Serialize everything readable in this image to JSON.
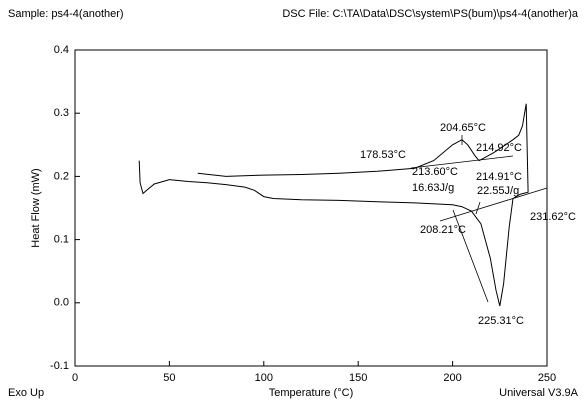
{
  "chart_data": {
    "type": "line",
    "sample": "Sample: ps4-4(another)",
    "file": "DSC File: C:\\TA\\Data\\DSC\\system\\PS(bum)\\ps4-4(another)a",
    "xlabel": "Temperature (°C)",
    "ylabel": "Heat Flow (mW)",
    "corner_left": "Exo Up",
    "corner_right": "Universal V3.9A",
    "xlim": [
      0,
      250
    ],
    "xticks": [
      0,
      50,
      100,
      150,
      200,
      250
    ],
    "ylim": [
      -0.1,
      0.4
    ],
    "yticks": [
      -0.1,
      {
        "value": 0,
        "label": "0.0"
      },
      0.1,
      0.2,
      0.3,
      0.4
    ],
    "series": [
      {
        "color": "#000000",
        "x": [
          34,
          34.5,
          36,
          38,
          42,
          50,
          60,
          70,
          80,
          90,
          95,
          100,
          105,
          120,
          140,
          160,
          180,
          200,
          205,
          210,
          215,
          220,
          223,
          225,
          227,
          230,
          232,
          236,
          240,
          239,
          237,
          235,
          232,
          228,
          222,
          216,
          214,
          212,
          208,
          205,
          200,
          190,
          180,
          160,
          140,
          120,
          100,
          80,
          65
        ],
        "values": [
          0.225,
          0.19,
          0.173,
          0.178,
          0.188,
          0.195,
          0.192,
          0.19,
          0.187,
          0.183,
          0.178,
          0.168,
          0.165,
          0.163,
          0.162,
          0.16,
          0.158,
          0.155,
          0.152,
          0.145,
          0.125,
          0.07,
          0.02,
          -0.005,
          0.03,
          0.12,
          0.165,
          0.172,
          0.175,
          0.315,
          0.28,
          0.265,
          0.258,
          0.25,
          0.238,
          0.228,
          0.225,
          0.232,
          0.25,
          0.258,
          0.25,
          0.225,
          0.213,
          0.208,
          0.205,
          0.203,
          0.202,
          0.2,
          0.205
        ]
      }
    ],
    "annotations": [
      "178.53°C",
      "204.65°C",
      "214.92°C",
      "213.60°C",
      "214.91°C",
      "16.63J/g",
      "22.55J/g",
      "208.21°C",
      "231.62°C",
      "225.31°C"
    ]
  }
}
